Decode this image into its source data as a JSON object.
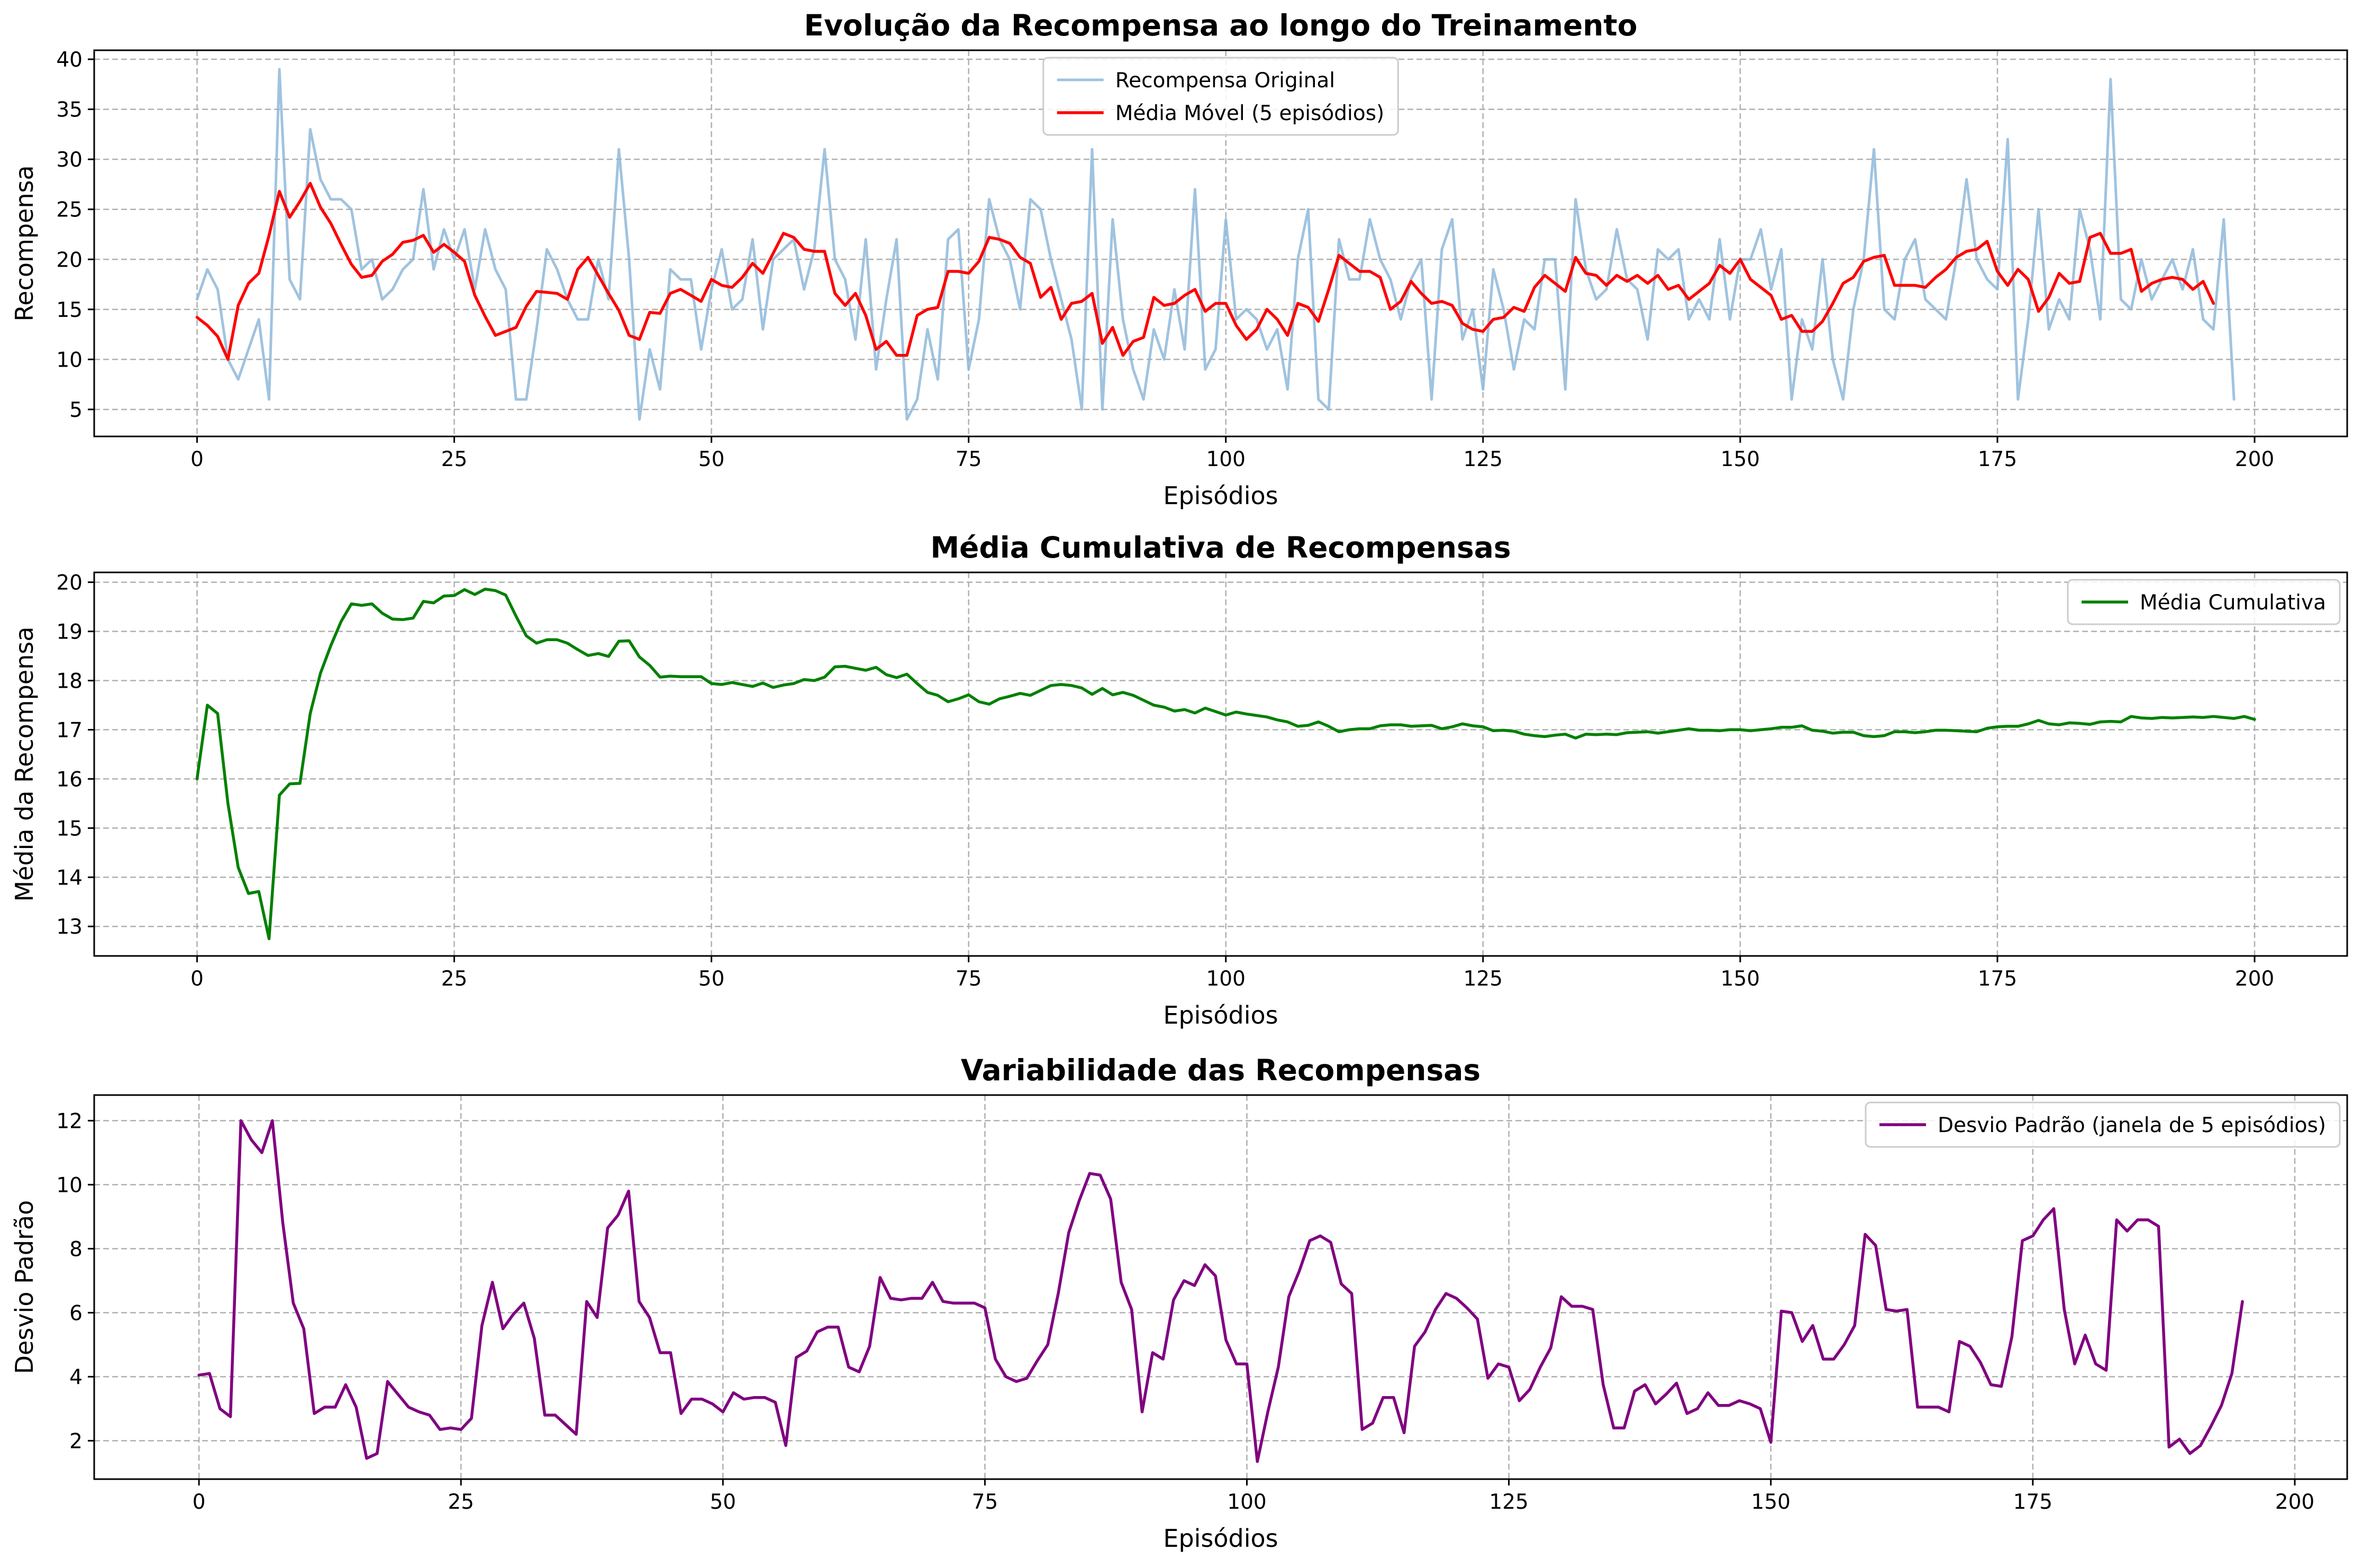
{
  "chart_data": [
    {
      "type": "line",
      "title": "Evolução da Recompensa ao longo do Treinamento",
      "xlabel": "Episódios",
      "ylabel": "Recompensa",
      "xlim": [
        -10,
        209
      ],
      "ylim": [
        2.3,
        40.9
      ],
      "xticks": [
        0,
        25,
        50,
        75,
        100,
        125,
        150,
        175,
        200
      ],
      "yticks": [
        5,
        10,
        15,
        20,
        25,
        30,
        35,
        40
      ],
      "grid": true,
      "legend_position": "top-center",
      "series": [
        {
          "name": "Recompensa Original",
          "color": "#8fb9d9",
          "alpha": 0.85,
          "width": 5,
          "x_start": 0,
          "values": [
            16,
            19,
            17,
            10,
            8,
            11,
            14,
            6,
            39,
            18,
            16,
            33,
            28,
            26,
            26,
            25,
            19,
            20,
            16,
            17,
            19,
            20,
            27,
            19,
            23,
            20,
            23,
            17,
            23,
            19,
            17,
            6,
            6,
            13,
            21,
            19,
            16,
            14,
            14,
            20,
            16,
            31,
            20,
            4,
            11,
            7,
            19,
            18,
            18,
            11,
            17,
            21,
            15,
            16,
            22,
            13,
            20,
            21,
            22,
            17,
            21,
            31,
            20,
            18,
            12,
            22,
            9,
            16,
            22,
            4,
            6,
            13,
            8,
            22,
            23,
            9,
            14,
            26,
            22,
            20,
            15,
            26,
            25,
            20,
            16,
            12,
            5,
            31,
            5,
            24,
            14,
            9,
            6,
            13,
            10,
            17,
            11,
            27,
            9,
            11,
            24,
            14,
            15,
            14,
            11,
            13,
            7,
            20,
            25,
            6,
            5,
            22,
            18,
            18,
            24,
            20,
            18,
            14,
            18,
            20,
            6,
            21,
            24,
            12,
            15,
            7,
            19,
            15,
            9,
            14,
            13,
            20,
            20,
            7,
            26,
            19,
            16,
            17,
            23,
            18,
            17,
            12,
            21,
            20,
            21,
            14,
            16,
            14,
            22,
            14,
            20,
            20,
            23,
            17,
            21,
            6,
            14,
            11,
            20,
            10,
            6,
            15,
            20,
            31,
            15,
            14,
            20,
            22,
            16,
            15,
            14,
            20,
            28,
            20,
            18,
            17,
            32,
            6,
            14,
            25,
            13,
            16,
            14,
            25,
            21,
            14,
            38,
            16,
            15,
            20,
            16,
            18,
            20,
            17,
            21,
            14,
            13,
            24,
            6
          ]
        },
        {
          "name": "Média Móvel (5 episódios)",
          "color": "#ff0000",
          "width": 5.5,
          "x_start": 0,
          "values": [
            14.2,
            13.4,
            12.3,
            10.0,
            15.4,
            17.6,
            18.6,
            22.4,
            26.8,
            24.2,
            25.8,
            27.6,
            25.2,
            23.6,
            21.5,
            19.5,
            18.2,
            18.4,
            19.8,
            20.5,
            21.7,
            21.9,
            22.4,
            20.7,
            21.5,
            20.7,
            19.8,
            16.4,
            14.3,
            12.4,
            12.8,
            13.2,
            15.3,
            16.8,
            16.7,
            16.6,
            16.0,
            19.0,
            20.2,
            18.4,
            16.6,
            14.9,
            12.4,
            12.0,
            14.7,
            14.6,
            16.6,
            17.0,
            16.4,
            15.8,
            18.0,
            17.4,
            17.2,
            18.2,
            19.6,
            18.6,
            20.6,
            22.6,
            22.2,
            21.0,
            20.8,
            20.8,
            16.6,
            15.4,
            16.6,
            14.4,
            11.0,
            11.8,
            10.4,
            10.4,
            14.4,
            15.0,
            15.2,
            18.8,
            18.8,
            18.6,
            19.8,
            22.2,
            22.0,
            21.6,
            20.2,
            19.6,
            16.2,
            17.2,
            14.0,
            15.6,
            15.8,
            16.6,
            11.6,
            13.2,
            10.4,
            11.8,
            12.2,
            16.2,
            15.4,
            15.6,
            16.4,
            17.0,
            14.8,
            15.6,
            15.6,
            13.4,
            12.0,
            13.0,
            15.0,
            14.0,
            12.4,
            15.6,
            15.2,
            13.8,
            17.0,
            20.4,
            19.6,
            18.8,
            18.8,
            18.2,
            15.0,
            15.8,
            17.8,
            16.6,
            15.6,
            15.8,
            15.4,
            13.6,
            13.0,
            12.8,
            14.0,
            14.2,
            15.2,
            14.8,
            17.2,
            18.4,
            17.6,
            16.8,
            20.2,
            18.6,
            18.4,
            17.4,
            18.4,
            17.8,
            18.4,
            17.6,
            18.4,
            17.0,
            17.4,
            16.0,
            16.8,
            17.6,
            19.4,
            18.6,
            20.0,
            18.0,
            17.2,
            16.4,
            14.0,
            14.4,
            12.8,
            12.8,
            13.8,
            15.6,
            17.6,
            18.2,
            19.8,
            20.2,
            20.4,
            17.4,
            17.4,
            17.4,
            17.2,
            18.2,
            19.0,
            20.2,
            20.8,
            21.0,
            21.8,
            18.8,
            17.4,
            19.0,
            18.0,
            14.8,
            16.2,
            18.6,
            17.6,
            17.8,
            22.2,
            22.6,
            20.6,
            20.6,
            21.0,
            16.8,
            17.6,
            18.0,
            18.2,
            18.0,
            17.0,
            17.8,
            15.6
          ]
        }
      ]
    },
    {
      "type": "line",
      "title": "Média Cumulativa de Recompensas",
      "xlabel": "Episódios",
      "ylabel": "Média da Recompensa",
      "xlim": [
        -10,
        209
      ],
      "ylim": [
        12.4,
        20.2
      ],
      "xticks": [
        0,
        25,
        50,
        75,
        100,
        125,
        150,
        175,
        200
      ],
      "yticks": [
        13,
        14,
        15,
        16,
        17,
        18,
        19,
        20
      ],
      "grid": true,
      "legend_position": "top-right",
      "series": [
        {
          "name": "Média Cumulativa",
          "color": "#008000",
          "width": 5.5,
          "x_start": 0,
          "values": [
            16.0,
            17.5,
            17.33,
            15.5,
            14.2,
            13.67,
            13.71,
            12.75,
            15.67,
            15.9,
            15.91,
            17.33,
            18.15,
            18.71,
            19.2,
            19.56,
            19.53,
            19.56,
            19.37,
            19.25,
            19.24,
            19.27,
            19.61,
            19.58,
            19.72,
            19.73,
            19.85,
            19.75,
            19.86,
            19.83,
            19.74,
            19.31,
            18.91,
            18.76,
            18.83,
            18.83,
            18.76,
            18.63,
            18.51,
            18.55,
            18.49,
            18.8,
            18.81,
            18.48,
            18.31,
            18.07,
            18.09,
            18.08,
            18.08,
            18.08,
            17.94,
            17.92,
            17.96,
            17.92,
            17.88,
            17.95,
            17.86,
            17.91,
            17.94,
            18.02,
            18.0,
            18.07,
            18.28,
            18.29,
            18.25,
            18.21,
            18.27,
            18.12,
            18.06,
            18.13,
            17.94,
            17.76,
            17.7,
            17.57,
            17.63,
            17.71,
            17.57,
            17.52,
            17.63,
            17.68,
            17.74,
            17.7,
            17.8,
            17.9,
            17.92,
            17.9,
            17.85,
            17.72,
            17.84,
            17.71,
            17.76,
            17.7,
            17.6,
            17.5,
            17.46,
            17.38,
            17.41,
            17.34,
            17.44,
            17.37,
            17.3,
            17.36,
            17.32,
            17.29,
            17.26,
            17.2,
            17.16,
            17.07,
            17.09,
            17.16,
            17.07,
            16.96,
            17.0,
            17.02,
            17.02,
            17.08,
            17.1,
            17.1,
            17.07,
            17.08,
            17.09,
            17.02,
            17.06,
            17.12,
            17.08,
            17.06,
            16.98,
            16.99,
            16.97,
            16.91,
            16.88,
            16.86,
            16.89,
            16.91,
            16.83,
            16.91,
            16.9,
            16.91,
            16.9,
            16.94,
            16.95,
            16.96,
            16.93,
            16.96,
            16.99,
            17.02,
            16.99,
            16.99,
            16.98,
            17.0,
            17.0,
            16.98,
            17.0,
            17.02,
            17.05,
            17.05,
            17.08,
            16.99,
            16.97,
            16.93,
            16.95,
            16.95,
            16.88,
            16.86,
            16.88,
            16.96,
            16.96,
            16.94,
            16.96,
            16.99,
            16.99,
            16.98,
            16.97,
            16.96,
            17.03,
            17.06,
            17.07,
            17.07,
            17.12,
            17.19,
            17.12,
            17.1,
            17.14,
            17.13,
            17.11,
            17.16,
            17.17,
            17.16,
            17.27,
            17.24,
            17.23,
            17.25,
            17.24,
            17.25,
            17.26,
            17.25,
            17.27,
            17.25,
            17.23,
            17.27,
            17.21
          ]
        }
      ]
    },
    {
      "type": "line",
      "title": "Variabilidade das Recompensas",
      "xlabel": "Episódios",
      "ylabel": "Desvio Padrão",
      "xlim": [
        -10,
        205
      ],
      "ylim": [
        0.8,
        12.8
      ],
      "xticks": [
        0,
        25,
        50,
        75,
        100,
        125,
        150,
        175,
        200
      ],
      "yticks": [
        2,
        4,
        6,
        8,
        10,
        12
      ],
      "grid": true,
      "legend_position": "top-right",
      "series": [
        {
          "name": "Desvio Padrão (janela de 5 episódios)",
          "color": "#800080",
          "width": 5.5,
          "x_start": 0,
          "values": [
            4.05,
            4.1,
            3.0,
            2.75,
            12.0,
            11.4,
            11.0,
            12.0,
            8.8,
            6.3,
            5.5,
            2.85,
            3.05,
            3.05,
            3.75,
            3.05,
            1.45,
            1.6,
            3.85,
            3.45,
            3.05,
            2.9,
            2.8,
            2.35,
            2.4,
            2.35,
            2.7,
            5.6,
            6.95,
            5.5,
            5.95,
            6.3,
            5.2,
            2.8,
            2.8,
            2.5,
            2.2,
            6.35,
            5.85,
            8.65,
            9.05,
            9.8,
            6.35,
            5.85,
            4.75,
            4.75,
            2.85,
            3.3,
            3.3,
            3.15,
            2.9,
            3.5,
            3.3,
            3.35,
            3.35,
            3.2,
            1.85,
            4.6,
            4.8,
            5.4,
            5.55,
            5.55,
            4.3,
            4.15,
            4.95,
            7.1,
            6.45,
            6.4,
            6.45,
            6.45,
            6.95,
            6.35,
            6.3,
            6.3,
            6.3,
            6.15,
            4.55,
            4.0,
            3.85,
            3.95,
            4.5,
            5.0,
            6.6,
            8.5,
            9.5,
            10.35,
            10.3,
            9.55,
            6.95,
            6.1,
            2.9,
            4.75,
            4.55,
            6.4,
            7.0,
            6.85,
            7.5,
            7.15,
            5.15,
            4.4,
            4.4,
            1.35,
            2.9,
            4.3,
            6.5,
            7.3,
            8.25,
            8.4,
            8.2,
            6.9,
            6.6,
            2.35,
            2.55,
            3.35,
            3.35,
            2.25,
            4.95,
            5.4,
            6.1,
            6.6,
            6.45,
            6.15,
            5.8,
            3.95,
            4.4,
            4.3,
            3.25,
            3.6,
            4.3,
            4.9,
            6.5,
            6.2,
            6.2,
            6.1,
            3.75,
            2.4,
            2.4,
            3.55,
            3.75,
            3.15,
            3.45,
            3.8,
            2.85,
            3.0,
            3.5,
            3.1,
            3.1,
            3.25,
            3.15,
            3.0,
            1.95,
            6.05,
            6.0,
            5.1,
            5.6,
            4.55,
            4.55,
            5.0,
            5.6,
            8.45,
            8.1,
            6.1,
            6.05,
            6.1,
            3.05,
            3.05,
            3.05,
            2.9,
            5.1,
            4.95,
            4.45,
            3.75,
            3.7,
            5.25,
            8.25,
            8.4,
            8.9,
            9.25,
            6.1,
            4.4,
            5.3,
            4.4,
            4.2,
            8.9,
            8.55,
            8.9,
            8.9,
            8.7,
            1.8,
            2.05,
            1.6,
            1.85,
            2.45,
            3.1,
            4.1,
            6.35
          ]
        }
      ]
    }
  ]
}
